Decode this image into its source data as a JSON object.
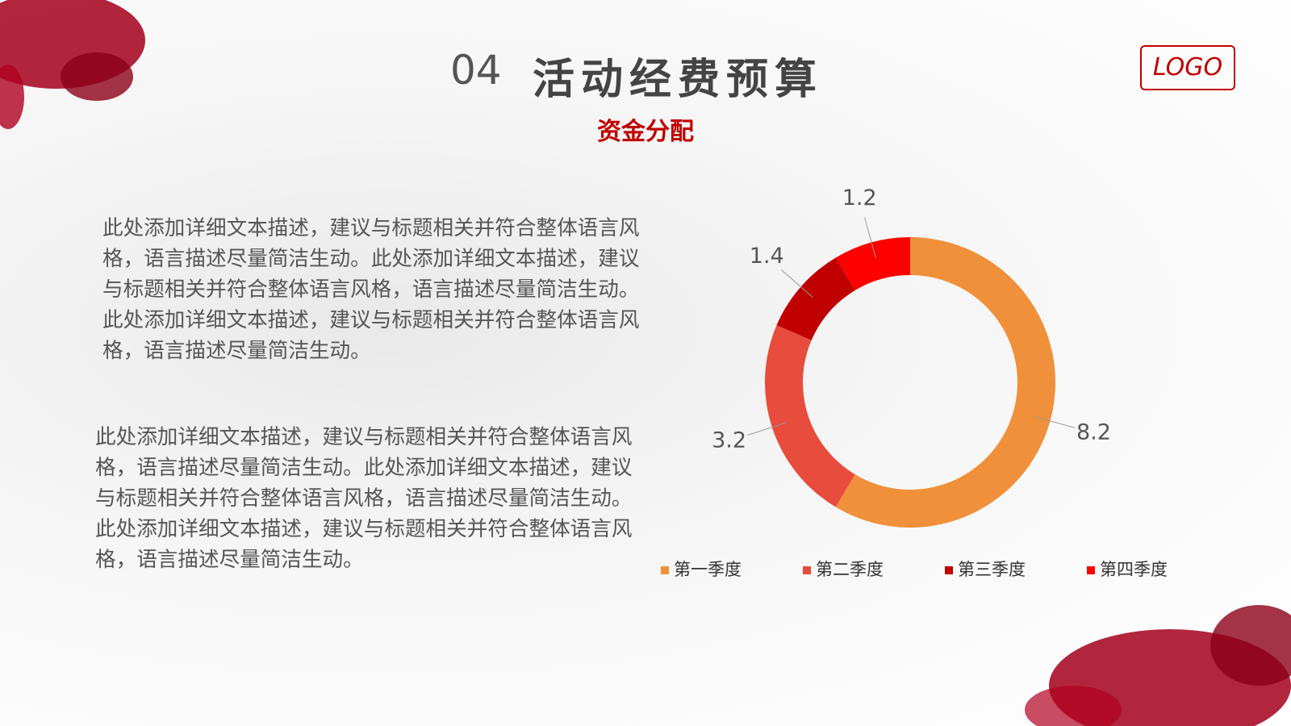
{
  "slide": {
    "number": "04",
    "title": "活动经费预算",
    "subtitle": "资金分配",
    "logo": "LOGO",
    "paragraphs": [
      "此处添加详细文本描述，建议与标题相关并符合整体语言风格，语言描述尽量简洁生动。此处添加详细文本描述，建议与标题相关并符合整体语言风格，语言描述尽量简洁生动。此处添加详细文本描述，建议与标题相关并符合整体语言风格，语言描述尽量简洁生动。",
      "此处添加详细文本描述，建议与标题相关并符合整体语言风格，语言描述尽量简洁生动。此处添加详细文本描述，建议与标题相关并符合整体语言风格，语言描述尽量简洁生动。此处添加详细文本描述，建议与标题相关并符合整体语言风格，语言描述尽量简洁生动。"
    ]
  },
  "chart_data": {
    "type": "donut",
    "categories": [
      "第一季度",
      "第二季度",
      "第三季度",
      "第四季度"
    ],
    "values": [
      8.2,
      3.2,
      1.4,
      1.2
    ],
    "colors": [
      "#f0903a",
      "#e84c3d",
      "#c00000",
      "#ff0000"
    ],
    "legend": "bottom"
  }
}
